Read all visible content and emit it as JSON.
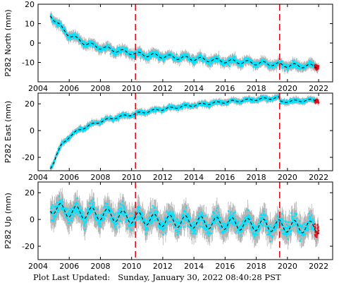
{
  "footer": {
    "label": "Plot Last Updated:",
    "timestamp": "Sunday, January 30, 2022 08:40:28 PST"
  },
  "colors": {
    "error_bars": "#b4b4b4",
    "data_points": "#00e5ff",
    "trend_line": "#000000",
    "recent_points": "#e0101a",
    "event_lines": "#e0101a"
  },
  "chart_data": [
    {
      "type": "scatter",
      "ylabel": "P282 North (mm)",
      "xlim": [
        2004,
        2022.9
      ],
      "ylim": [
        -20,
        20
      ],
      "xticks": [
        2004,
        2006,
        2008,
        2010,
        2012,
        2014,
        2016,
        2018,
        2020,
        2022
      ],
      "yticks": [
        -10,
        0,
        10,
        20
      ],
      "event_lines": [
        2010.25,
        2019.5
      ],
      "anchors": {
        "x": [
          2004.8,
          2005.2,
          2005.6,
          2006.0,
          2006.5,
          2007.0,
          2007.5,
          2008.0,
          2008.5,
          2009.0,
          2009.5,
          2010.0,
          2010.3,
          2011.0,
          2012.0,
          2013.0,
          2014.0,
          2015.0,
          2016.0,
          2017.0,
          2018.0,
          2019.0,
          2019.6,
          2020.0,
          2021.0,
          2022.0
        ],
        "y": [
          14.5,
          10.5,
          7.0,
          4.2,
          2.0,
          0.0,
          -1.3,
          -2.2,
          -3.0,
          -3.8,
          -4.5,
          -5.0,
          -5.6,
          -6.1,
          -6.8,
          -7.5,
          -8.1,
          -8.7,
          -9.3,
          -9.8,
          -10.3,
          -10.8,
          -11.3,
          -11.5,
          -11.8,
          -12.0
        ]
      },
      "scatter_sd": 1.4,
      "seasonal_amp": 1.0
    },
    {
      "type": "scatter",
      "ylabel": "P282 East (mm)",
      "xlim": [
        2004,
        2022.9
      ],
      "ylim": [
        -30,
        28
      ],
      "xticks": [
        2004,
        2006,
        2008,
        2010,
        2012,
        2014,
        2016,
        2018,
        2020,
        2022
      ],
      "yticks": [
        -20,
        0,
        20
      ],
      "event_lines": [
        2010.25,
        2019.5
      ],
      "anchors": {
        "x": [
          2004.8,
          2005.0,
          2005.2,
          2005.5,
          2006.0,
          2006.5,
          2007.0,
          2008.0,
          2009.0,
          2010.0,
          2011.0,
          2012.0,
          2013.0,
          2014.0,
          2015.0,
          2016.0,
          2017.0,
          2018.0,
          2019.0,
          2019.45,
          2019.55,
          2020.0,
          2021.0,
          2022.0
        ],
        "y": [
          -28.0,
          -23.5,
          -18.0,
          -11.0,
          -4.5,
          -0.5,
          2.5,
          6.8,
          9.8,
          12.0,
          14.2,
          16.0,
          17.6,
          19.0,
          20.3,
          21.4,
          22.4,
          23.3,
          24.2,
          24.5,
          21.5,
          21.8,
          22.4,
          22.9
        ]
      },
      "scatter_sd": 1.3,
      "seasonal_amp": 0.8
    },
    {
      "type": "scatter",
      "ylabel": "P282 Up (mm)",
      "xlim": [
        2004,
        2022.9
      ],
      "ylim": [
        -30,
        28
      ],
      "xticks": [
        2004,
        2006,
        2008,
        2010,
        2012,
        2014,
        2016,
        2018,
        2020,
        2022
      ],
      "yticks": [
        -20,
        0,
        20
      ],
      "event_lines": [
        2010.25,
        2019.5
      ],
      "anchors": {
        "x": [
          2004.8,
          2006.0,
          2008.0,
          2010.0,
          2012.0,
          2014.0,
          2016.0,
          2018.0,
          2020.0,
          2022.0
        ],
        "y": [
          9.0,
          6.0,
          4.0,
          1.5,
          -1.0,
          -2.0,
          -3.0,
          -4.0,
          -5.0,
          -6.0
        ]
      },
      "scatter_sd": 5.0,
      "seasonal_amp": 4.5
    }
  ]
}
